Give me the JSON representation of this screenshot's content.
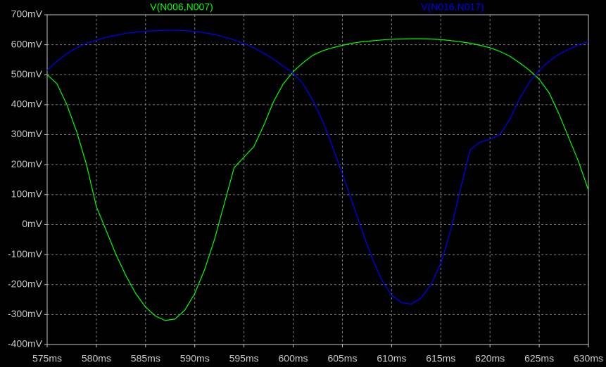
{
  "chart_data": {
    "type": "line",
    "x": [
      575,
      576,
      577,
      578,
      579,
      580,
      581,
      582,
      583,
      584,
      585,
      586,
      587,
      588,
      589,
      590,
      591,
      592,
      593,
      594,
      595,
      596,
      597,
      598,
      599,
      600,
      601,
      602,
      603,
      604,
      605,
      606,
      607,
      608,
      609,
      610,
      611,
      612,
      613,
      614,
      615,
      616,
      617,
      618,
      619,
      620,
      621,
      622,
      623,
      624,
      625,
      626,
      627,
      628,
      629,
      630
    ],
    "series": [
      {
        "name": "V(N006,N007)",
        "color": "#00ff00",
        "values": [
          500,
          470,
          400,
          310,
          200,
          60,
          -20,
          -100,
          -170,
          -230,
          -275,
          -305,
          -320,
          -315,
          -285,
          -230,
          -150,
          -50,
          70,
          190,
          225,
          260,
          330,
          410,
          470,
          510,
          540,
          565,
          580,
          590,
          598,
          605,
          610,
          613,
          616,
          618,
          619,
          620,
          620,
          619,
          617,
          614,
          610,
          605,
          598,
          590,
          578,
          562,
          540,
          515,
          485,
          440,
          370,
          290,
          210,
          115
        ]
      },
      {
        "name": "V(N016,N017)",
        "color": "#0000ff",
        "values": [
          515,
          545,
          570,
          590,
          605,
          615,
          625,
          632,
          638,
          642,
          645,
          647,
          648,
          648,
          647,
          644,
          640,
          634,
          626,
          616,
          604,
          590,
          572,
          552,
          528,
          505,
          470,
          415,
          345,
          260,
          170,
          75,
          -20,
          -110,
          -185,
          -235,
          -260,
          -265,
          -245,
          -200,
          -130,
          -20,
          120,
          250,
          275,
          285,
          300,
          350,
          420,
          475,
          515,
          545,
          568,
          585,
          600,
          610
        ]
      }
    ],
    "xlim": [
      575,
      630
    ],
    "xticks": [
      {
        "value": 575,
        "label": "575ms"
      },
      {
        "value": 580,
        "label": "580ms"
      },
      {
        "value": 585,
        "label": "585ms"
      },
      {
        "value": 590,
        "label": "590ms"
      },
      {
        "value": 595,
        "label": "595ms"
      },
      {
        "value": 600,
        "label": "600ms"
      },
      {
        "value": 605,
        "label": "605ms"
      },
      {
        "value": 610,
        "label": "610ms"
      },
      {
        "value": 615,
        "label": "615ms"
      },
      {
        "value": 620,
        "label": "620ms"
      },
      {
        "value": 625,
        "label": "625ms"
      },
      {
        "value": 630,
        "label": "630ms"
      }
    ],
    "ylim": [
      -400,
      700
    ],
    "yticks": [
      {
        "value": -400,
        "label": "-400mV"
      },
      {
        "value": -300,
        "label": "-300mV"
      },
      {
        "value": -200,
        "label": "-200mV"
      },
      {
        "value": -100,
        "label": "-100mV"
      },
      {
        "value": 0,
        "label": "0mV"
      },
      {
        "value": 100,
        "label": "100mV"
      },
      {
        "value": 200,
        "label": "200mV"
      },
      {
        "value": 300,
        "label": "300mV"
      },
      {
        "value": 400,
        "label": "400mV"
      },
      {
        "value": 500,
        "label": "500mV"
      },
      {
        "value": 600,
        "label": "600mV"
      },
      {
        "value": 700,
        "label": "700mV"
      }
    ],
    "grid": true
  }
}
